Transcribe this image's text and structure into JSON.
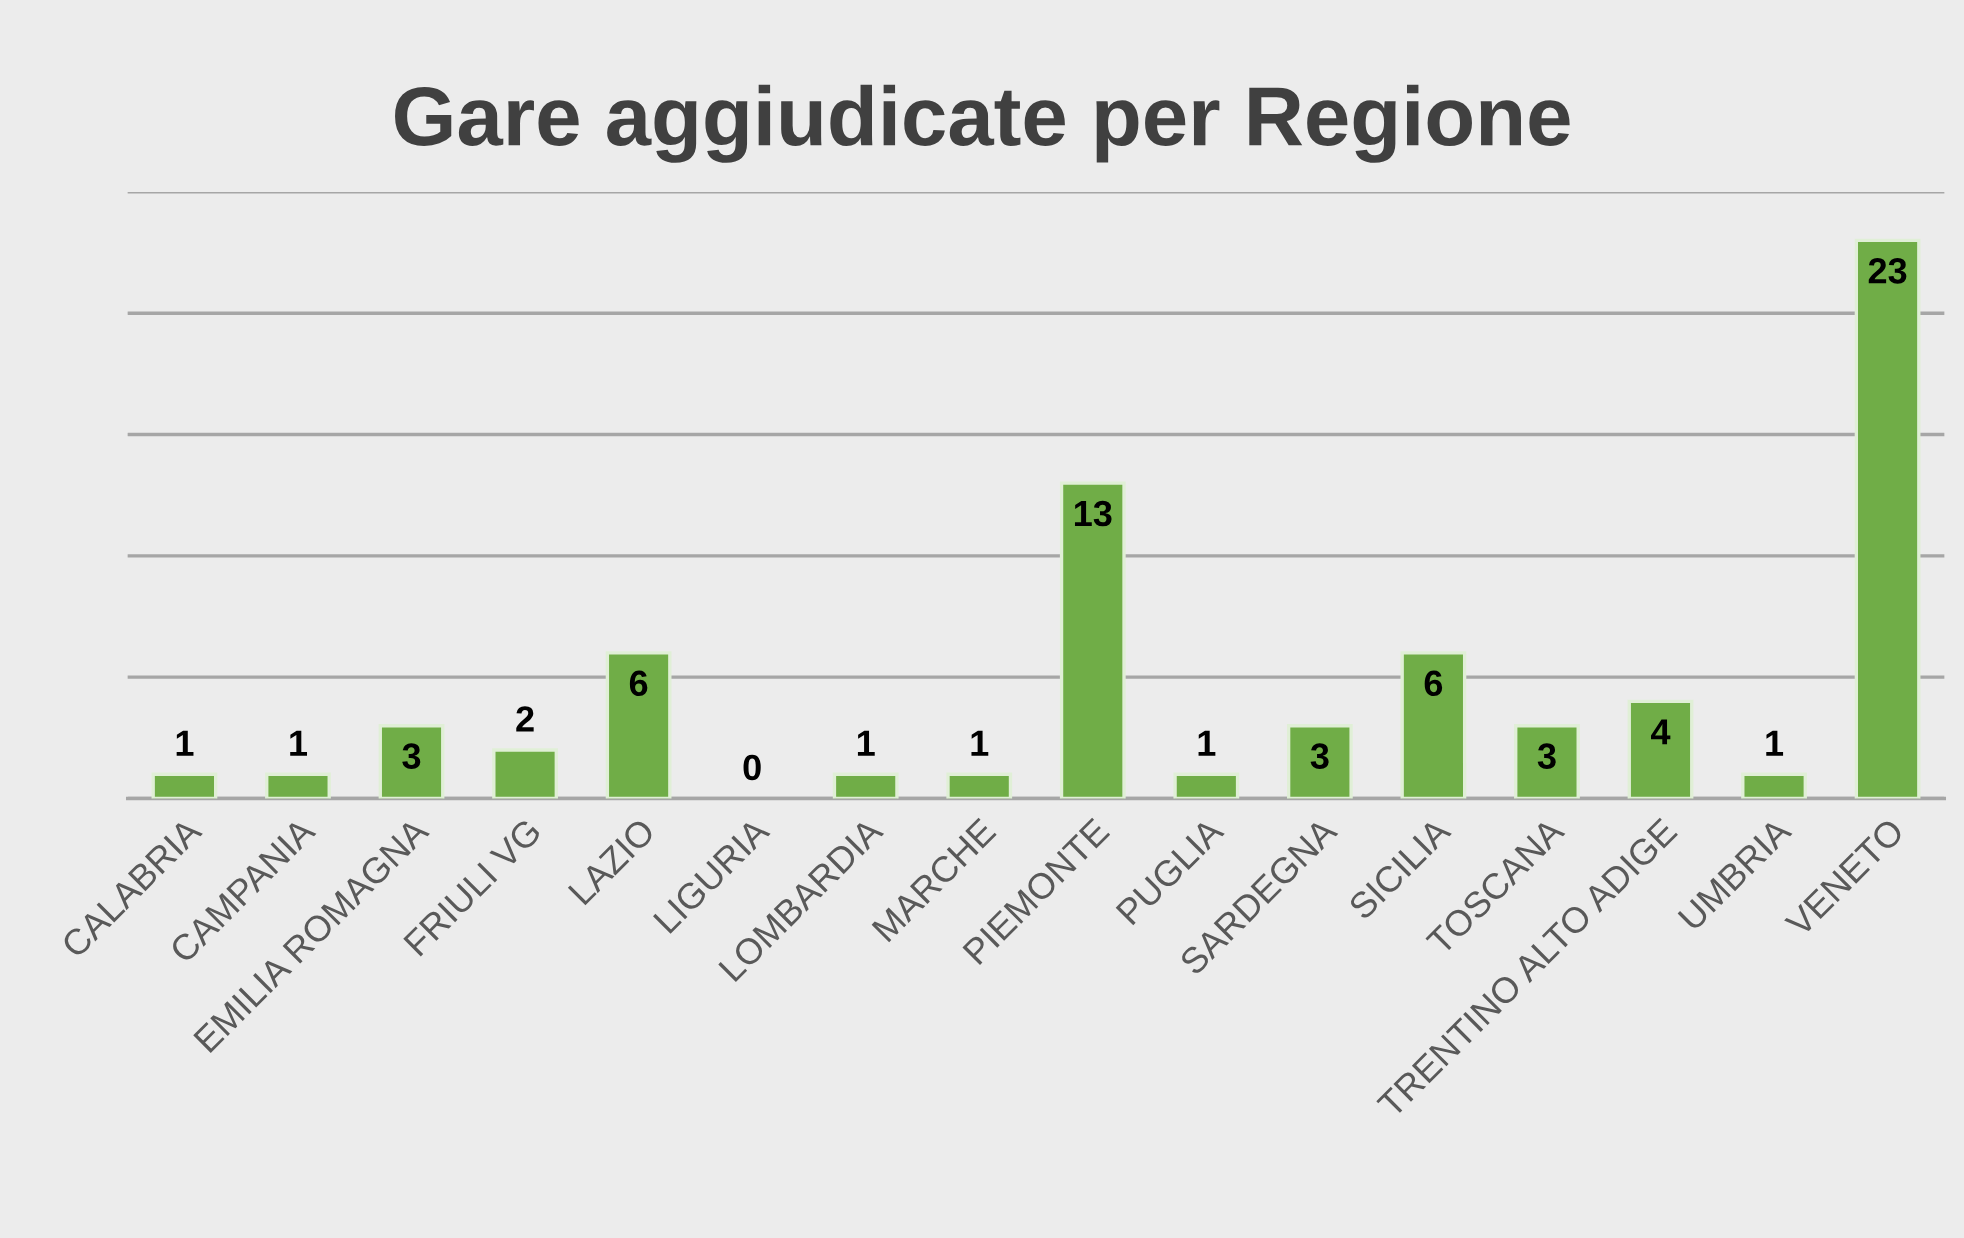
{
  "chart_data": {
    "type": "bar",
    "title": "Gare aggiudicate per Regione",
    "categories": [
      "CALABRIA",
      "CAMPANIA",
      "EMILIA ROMAGNA",
      "FRIULI VG",
      "LAZIO",
      "LIGURIA",
      "LOMBARDIA",
      "MARCHE",
      "PIEMONTE",
      "PUGLIA",
      "SARDEGNA",
      "SICILIA",
      "TOSCANA",
      "TRENTINO ALTO ADIGE",
      "UMBRIA",
      "VENETO"
    ],
    "values": [
      1,
      1,
      3,
      2,
      6,
      0,
      1,
      1,
      13,
      1,
      3,
      6,
      3,
      4,
      1,
      23
    ],
    "color": "#70ad47",
    "data_labels": true,
    "grid": "y",
    "tick_labels": "x",
    "ylim": [
      0,
      25
    ],
    "yticks": [
      {
        "value": 0,
        "label": null
      },
      {
        "value": 5,
        "label": null
      },
      {
        "value": 10,
        "label": null
      },
      {
        "value": 15,
        "label": null
      },
      {
        "value": 20,
        "label": null
      },
      {
        "value": 25,
        "label": null
      }
    ]
  }
}
